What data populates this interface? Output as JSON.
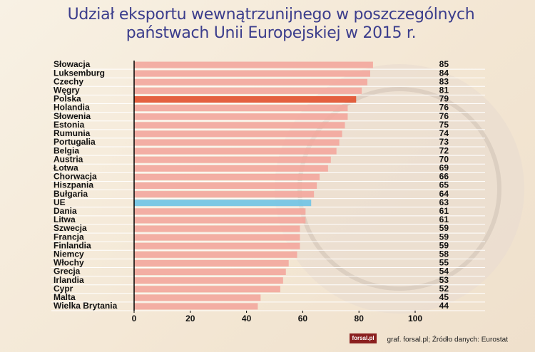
{
  "chart_data": {
    "type": "bar",
    "orientation": "horizontal",
    "title": "Udział eksportu wewnątrzunijnego w poszczególnych państwach Unii Europejskiej w 2015 r.",
    "categories": [
      "Słowacja",
      "Luksemburg",
      "Czechy",
      "Węgry",
      "Polska",
      "Holandia",
      "Słowenia",
      "Estonia",
      "Rumunia",
      "Portugalia",
      "Belgia",
      "Austria",
      "Łotwa",
      "Chorwacja",
      "Hiszpania",
      "Bułgaria",
      "UE",
      "Dania",
      "Litwa",
      "Szwecja",
      "Francja",
      "Finlandia",
      "Niemcy",
      "Włochy",
      "Grecja",
      "Irlandia",
      "Cypr",
      "Malta",
      "Wielka Brytania"
    ],
    "values": [
      85,
      84,
      83,
      81,
      79,
      76,
      76,
      75,
      74,
      73,
      72,
      70,
      69,
      66,
      65,
      64,
      63,
      61,
      61,
      59,
      59,
      59,
      58,
      55,
      54,
      53,
      52,
      45,
      44
    ],
    "colors": [
      "#f3a79d",
      "#f3a79d",
      "#f3a79d",
      "#f3a79d",
      "#e2512f",
      "#f3a79d",
      "#f3a79d",
      "#f3a79d",
      "#f3a79d",
      "#f3a79d",
      "#f3a79d",
      "#f3a79d",
      "#f3a79d",
      "#f3a79d",
      "#f3a79d",
      "#f3a79d",
      "#6fc4e6",
      "#f3a79d",
      "#f3a79d",
      "#f3a79d",
      "#f3a79d",
      "#f3a79d",
      "#f3a79d",
      "#f3a79d",
      "#f3a79d",
      "#f3a79d",
      "#f3a79d",
      "#f3a79d",
      "#f3a79d"
    ],
    "xlim": [
      0,
      100
    ],
    "xticks": [
      0,
      20,
      40,
      60,
      80,
      100
    ],
    "source": "graf. forsal.pl; Źródło danych: Eurostat",
    "logo": "forsal.pl"
  }
}
